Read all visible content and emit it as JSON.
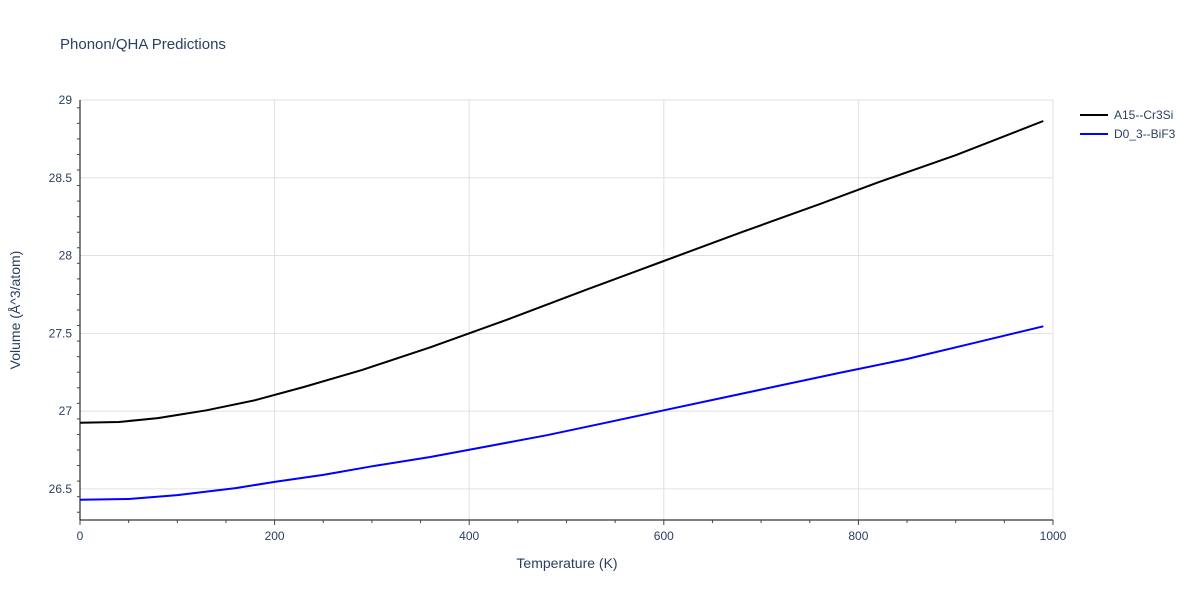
{
  "chart_data": {
    "type": "line",
    "title": "Phonon/QHA Predictions",
    "xlabel": "Temperature (K)",
    "ylabel": "Volume (Å^3/atom)",
    "xlim": [
      0,
      1000
    ],
    "ylim": [
      26.3,
      29.0
    ],
    "x_ticks": [
      0,
      200,
      400,
      600,
      800,
      1000
    ],
    "y_ticks": [
      26.5,
      27,
      27.5,
      28,
      28.5,
      29
    ],
    "grid": true,
    "legend_position": "top-right",
    "series": [
      {
        "name": "A15--Cr3Si",
        "color": "#000000",
        "x": [
          0,
          40,
          80,
          100,
          130,
          180,
          230,
          290,
          360,
          440,
          520,
          600,
          680,
          760,
          820,
          900,
          990
        ],
        "y": [
          26.925,
          26.93,
          26.955,
          26.975,
          27.005,
          27.07,
          27.155,
          27.265,
          27.41,
          27.59,
          27.78,
          27.965,
          28.15,
          28.33,
          28.47,
          28.645,
          28.865
        ]
      },
      {
        "name": "D0_3--BiF3",
        "color": "#0000ff",
        "x": [
          0,
          50,
          100,
          160,
          200,
          250,
          300,
          360,
          420,
          480,
          540,
          600,
          660,
          720,
          780,
          850,
          920,
          990
        ],
        "y": [
          26.43,
          26.435,
          26.46,
          26.505,
          26.545,
          26.59,
          26.645,
          26.705,
          26.775,
          26.845,
          26.925,
          27.005,
          27.085,
          27.165,
          27.245,
          27.335,
          27.44,
          27.545
        ]
      }
    ]
  }
}
